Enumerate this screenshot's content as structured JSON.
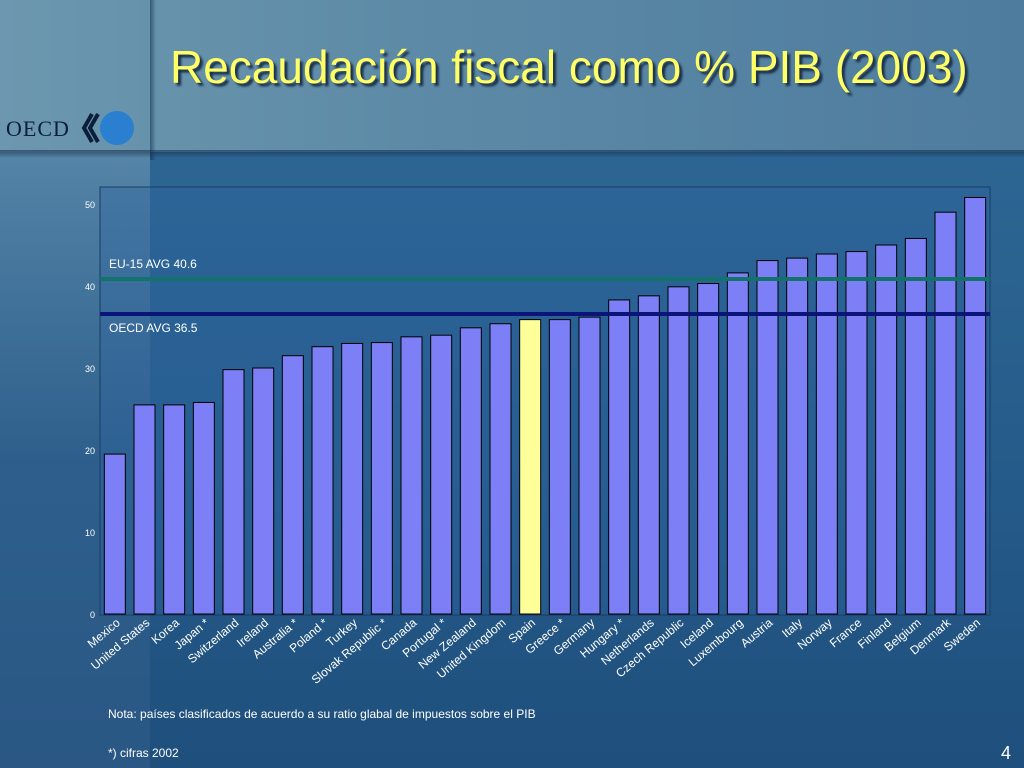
{
  "slide": {
    "title": "Recaudación fiscal como % PIB (2003)",
    "logo_text": "OECD",
    "note": "Nota: países clasificados de acuerdo a su ratio glabal de impuestos sobre el PIB",
    "footnote": "*) cifras 2002",
    "page_number": "4"
  },
  "chart_data": {
    "type": "bar",
    "title": "",
    "xlabel": "",
    "ylabel": "",
    "ylim": [
      0,
      52
    ],
    "yticks": [
      0,
      10,
      20,
      30,
      40,
      50
    ],
    "grid": false,
    "categories": [
      "Mexico",
      "United States",
      "Korea",
      "Japan *",
      "Switzerland",
      "Ireland",
      "Australia *",
      "Poland *",
      "Turkey",
      "Slovak Republic *",
      "Canada",
      "Portugal *",
      "New Zealand",
      "United Kingdom",
      "Spain",
      "Greece *",
      "Germany",
      "Hungary *",
      "Netherlands",
      "Czech Republic",
      "Iceland",
      "Luxembourg",
      "Austria",
      "Italy",
      "Norway",
      "France",
      "Finland",
      "Belgium",
      "Denmark",
      "Sweden"
    ],
    "values": [
      19.5,
      25.5,
      25.5,
      25.8,
      29.8,
      30.0,
      31.5,
      32.6,
      33.0,
      33.1,
      33.8,
      34.0,
      34.9,
      35.4,
      35.9,
      35.9,
      36.2,
      38.3,
      38.8,
      39.9,
      40.3,
      41.6,
      43.1,
      43.4,
      43.9,
      44.2,
      45.0,
      45.8,
      49.0,
      50.8
    ],
    "highlight": "Spain",
    "colors": {
      "bar": "#7c7ff5",
      "highlight": "#ffff99",
      "bar_edge": "#000000",
      "eu_line": "#13736a",
      "oecd_line": "#0b1478"
    },
    "reference_lines": [
      {
        "label": "EU-15 AVG 40.6",
        "value": 40.6
      },
      {
        "label": "OECD AVG 36.5",
        "value": 36.5
      }
    ]
  }
}
